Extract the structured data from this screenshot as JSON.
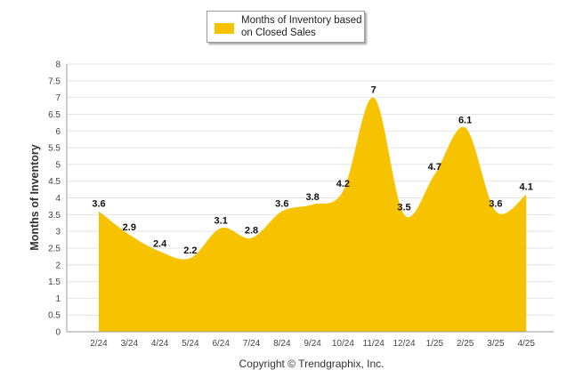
{
  "legend": {
    "label": "Months of Inventory based on Closed Sales"
  },
  "copyright": "Copyright © Trendgraphix, Inc.",
  "colors": {
    "area": "#F7C300",
    "grid": "#e4e4e4",
    "axis": "#999999"
  },
  "chart_data": {
    "type": "area",
    "title": "",
    "xlabel": "",
    "ylabel": "Months of Inventory",
    "ylim": [
      0,
      8
    ],
    "yticks": [
      "0",
      "0.5",
      "1",
      "1.5",
      "2",
      "2.5",
      "3",
      "3.5",
      "4",
      "4.5",
      "5",
      "5.5",
      "6",
      "6.5",
      "7",
      "7.5",
      "8"
    ],
    "categories": [
      "2/24",
      "3/24",
      "4/24",
      "5/24",
      "6/24",
      "7/24",
      "8/24",
      "9/24",
      "10/24",
      "11/24",
      "12/24",
      "1/25",
      "2/25",
      "3/25",
      "4/25"
    ],
    "series": [
      {
        "name": "Months of Inventory based on Closed Sales",
        "values": [
          3.6,
          2.9,
          2.4,
          2.2,
          3.1,
          2.8,
          3.6,
          3.8,
          4.2,
          7,
          3.5,
          4.7,
          6.1,
          3.6,
          4.1
        ]
      }
    ],
    "grid": true,
    "legend_position": "top-center"
  }
}
